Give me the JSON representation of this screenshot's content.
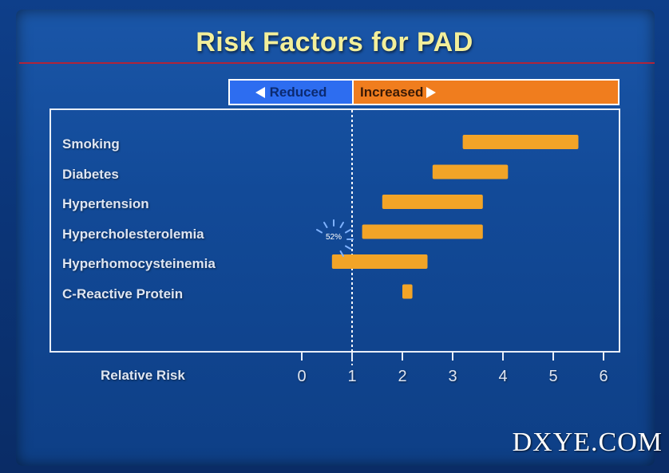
{
  "slide": {
    "title": "Risk Factors for PAD",
    "watermark": "DXYE.COM",
    "spinner_text": "52%"
  },
  "legend": {
    "reduced_label": "Reduced",
    "increased_label": "Increased",
    "reduced_color": "#2d6df0",
    "increased_color": "#f07d1e"
  },
  "colors": {
    "bar": "#f2a427",
    "reference_line": "#ffffff"
  },
  "chart_data": {
    "type": "bar",
    "orientation": "horizontal-range",
    "xlabel": "Relative Risk",
    "xlim": [
      0,
      6
    ],
    "xticks": [
      0,
      1,
      2,
      3,
      4,
      5,
      6
    ],
    "reference_line": 1,
    "categories": [
      "Smoking",
      "Diabetes",
      "Hypertension",
      "Hypercholesterolemia",
      "Hyperhomocysteinemia",
      "C-Reactive Protein"
    ],
    "ranges": [
      [
        3.2,
        5.5
      ],
      [
        2.6,
        4.1
      ],
      [
        1.6,
        3.6
      ],
      [
        1.2,
        3.6
      ],
      [
        0.6,
        2.5
      ],
      [
        2.0,
        2.2
      ]
    ]
  }
}
